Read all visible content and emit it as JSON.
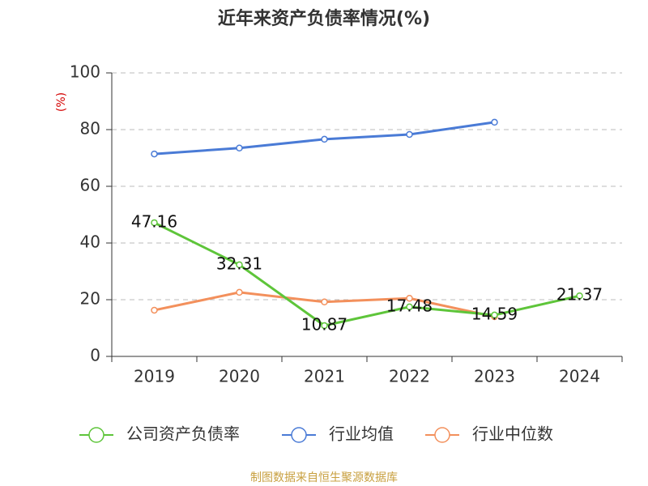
{
  "chart_data": {
    "type": "line",
    "title": "近年来资产负债率情况(%)",
    "y_label": "(%)",
    "categories": [
      "2019",
      "2020",
      "2021",
      "2022",
      "2023",
      "2024"
    ],
    "series": [
      {
        "name": "公司资产负债率",
        "color": "#5ec53a",
        "values": [
          47.16,
          32.31,
          10.87,
          17.48,
          14.59,
          21.37
        ],
        "data_labels": true
      },
      {
        "name": "行业均值",
        "color": "#4a7bd6",
        "values": [
          71.4,
          73.5,
          76.6,
          78.3,
          82.6,
          null
        ]
      },
      {
        "name": "行业中位数",
        "color": "#f3905c",
        "values": [
          16.3,
          22.6,
          19.2,
          20.5,
          14.0,
          null
        ]
      }
    ],
    "ylim": [
      0,
      100
    ],
    "yticks": [
      0,
      20,
      40,
      60,
      80,
      100
    ],
    "grid": true,
    "legend": "bottom",
    "footer": "制图数据来自恒生聚源数据库"
  }
}
